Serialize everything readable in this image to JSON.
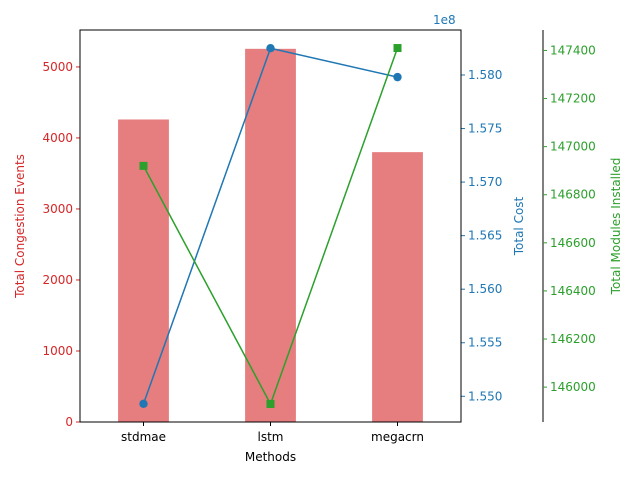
{
  "chart_data": {
    "type": "bar",
    "categories": [
      "stdmae",
      "lstm",
      "megacrn"
    ],
    "xlabel": "Methods",
    "grid": false,
    "series": [
      {
        "name": "Total Congestion Events",
        "chart_type": "bar",
        "axis": "left",
        "axis_label": "Total Congestion Events",
        "color": "#d62728",
        "values": [
          4260,
          5255,
          3800
        ],
        "ylim": [
          0,
          5520
        ],
        "ticks": [
          0,
          1000,
          2000,
          3000,
          4000,
          5000
        ]
      },
      {
        "name": "Total Cost",
        "chart_type": "line",
        "axis": "right",
        "axis_label": "Total Cost",
        "color": "#1f77b4",
        "marker": "circle",
        "values": [
          154930000,
          158250000,
          157980000
        ],
        "ylim": [
          154760000,
          158420000
        ],
        "ticks": [
          155000000,
          155500000,
          156000000,
          156500000,
          157000000,
          157500000,
          158000000
        ],
        "tick_labels": [
          "1.550",
          "1.555",
          "1.560",
          "1.565",
          "1.570",
          "1.575",
          "1.580"
        ],
        "offset_label": "1e8"
      },
      {
        "name": "Total Modules Installed",
        "chart_type": "line",
        "axis": "right-outer",
        "axis_label": "Total Modules Installed",
        "color": "#2ca02c",
        "marker": "square",
        "values": [
          146920,
          145930,
          147410
        ],
        "ylim": [
          145855,
          147485
        ],
        "ticks": [
          146000,
          146200,
          146400,
          146600,
          146800,
          147000,
          147200,
          147400
        ]
      }
    ]
  }
}
